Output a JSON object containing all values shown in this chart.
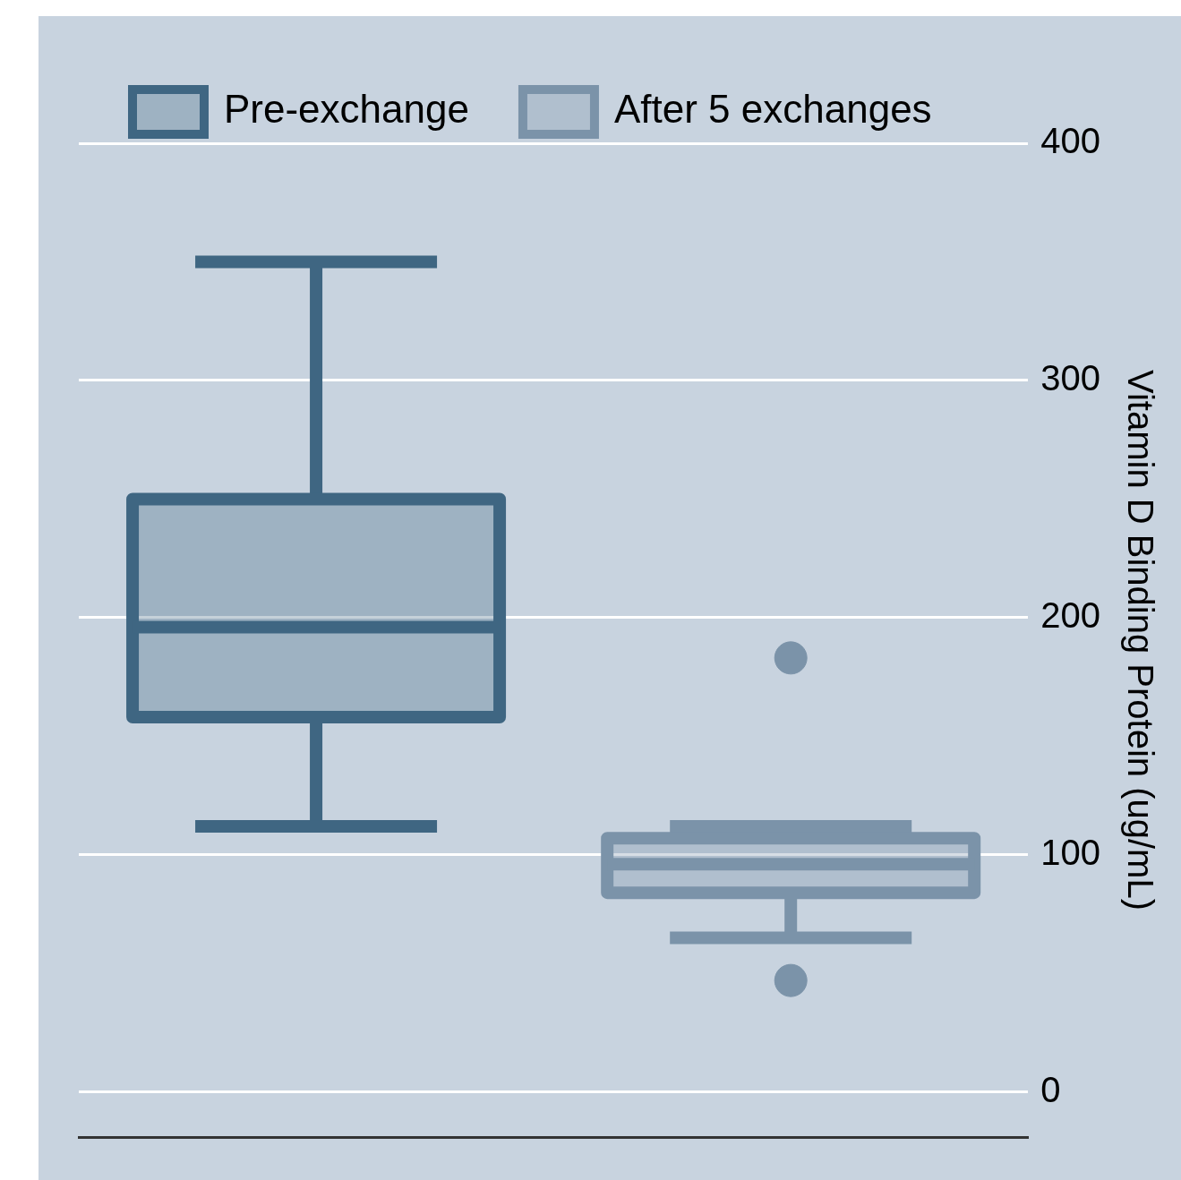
{
  "chart_data": {
    "type": "box",
    "ylabel": "Vitamin D Binding Protein (ug/mL)",
    "categories": [
      null,
      null
    ],
    "series": [
      {
        "name": "Pre-exchange",
        "color": "#3f6682",
        "boxes": [
          {
            "low": 112,
            "q1": 158,
            "median": 196,
            "q3": 250,
            "high": 350
          },
          null
        ]
      },
      {
        "name": "After 5 exchanges",
        "color": "#7b93a9",
        "boxes": [
          null,
          {
            "low": 65,
            "q1": 84,
            "median": 96,
            "q3": 107,
            "high": 112,
            "outliers": [
              183,
              47
            ]
          }
        ]
      }
    ],
    "ylim": [
      -19,
      400
    ],
    "yticks": [
      0,
      100,
      200,
      300,
      400
    ],
    "grid": "y",
    "legend": "top left"
  }
}
